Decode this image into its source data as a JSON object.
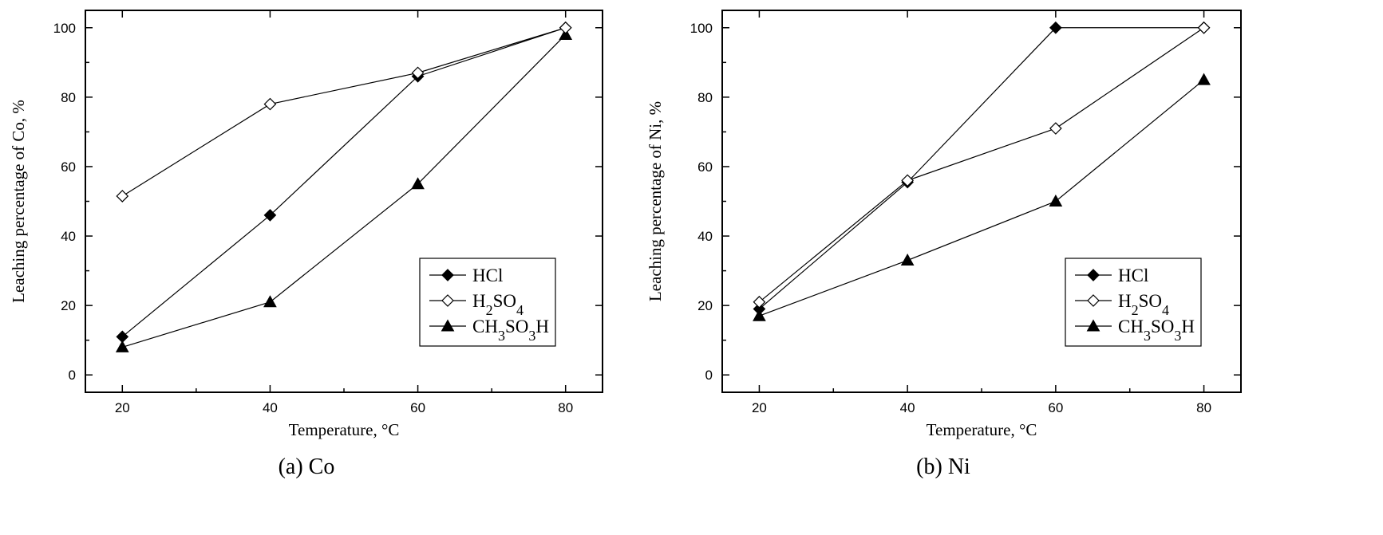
{
  "chart_data": [
    {
      "type": "line",
      "caption": "(a) Co",
      "xlabel": "Temperature, °C",
      "ylabel": "Leaching percentage of Co, %",
      "xlim": [
        15,
        85
      ],
      "ylim": [
        -5,
        105
      ],
      "xticks": [
        20,
        40,
        60,
        80
      ],
      "yticks": [
        0,
        20,
        40,
        60,
        80,
        100
      ],
      "x": [
        20,
        40,
        60,
        80
      ],
      "grid": false,
      "legend_position": "bottom-right",
      "series": [
        {
          "name": "HCl",
          "marker": "diamond-filled",
          "values": [
            11,
            46,
            86,
            100
          ]
        },
        {
          "name": "H2SO4",
          "marker": "diamond-open",
          "values": [
            51.5,
            78,
            87,
            100
          ]
        },
        {
          "name": "CH3SO3H",
          "marker": "triangle-filled",
          "values": [
            8,
            21,
            55,
            98
          ]
        }
      ]
    },
    {
      "type": "line",
      "caption": "(b) Ni",
      "xlabel": "Temperature, °C",
      "ylabel": "Leaching percentage of Ni, %",
      "xlim": [
        15,
        85
      ],
      "ylim": [
        -5,
        105
      ],
      "xticks": [
        20,
        40,
        60,
        80
      ],
      "yticks": [
        0,
        20,
        40,
        60,
        80,
        100
      ],
      "x": [
        20,
        40,
        60,
        80
      ],
      "grid": false,
      "legend_position": "bottom-right",
      "series": [
        {
          "name": "HCl",
          "marker": "diamond-filled",
          "values": [
            19,
            55.5,
            100,
            100
          ]
        },
        {
          "name": "H2SO4",
          "marker": "diamond-open",
          "values": [
            21,
            56,
            71,
            100
          ]
        },
        {
          "name": "CH3SO3H",
          "marker": "triangle-filled",
          "values": [
            17,
            33,
            50,
            85
          ]
        }
      ]
    }
  ]
}
